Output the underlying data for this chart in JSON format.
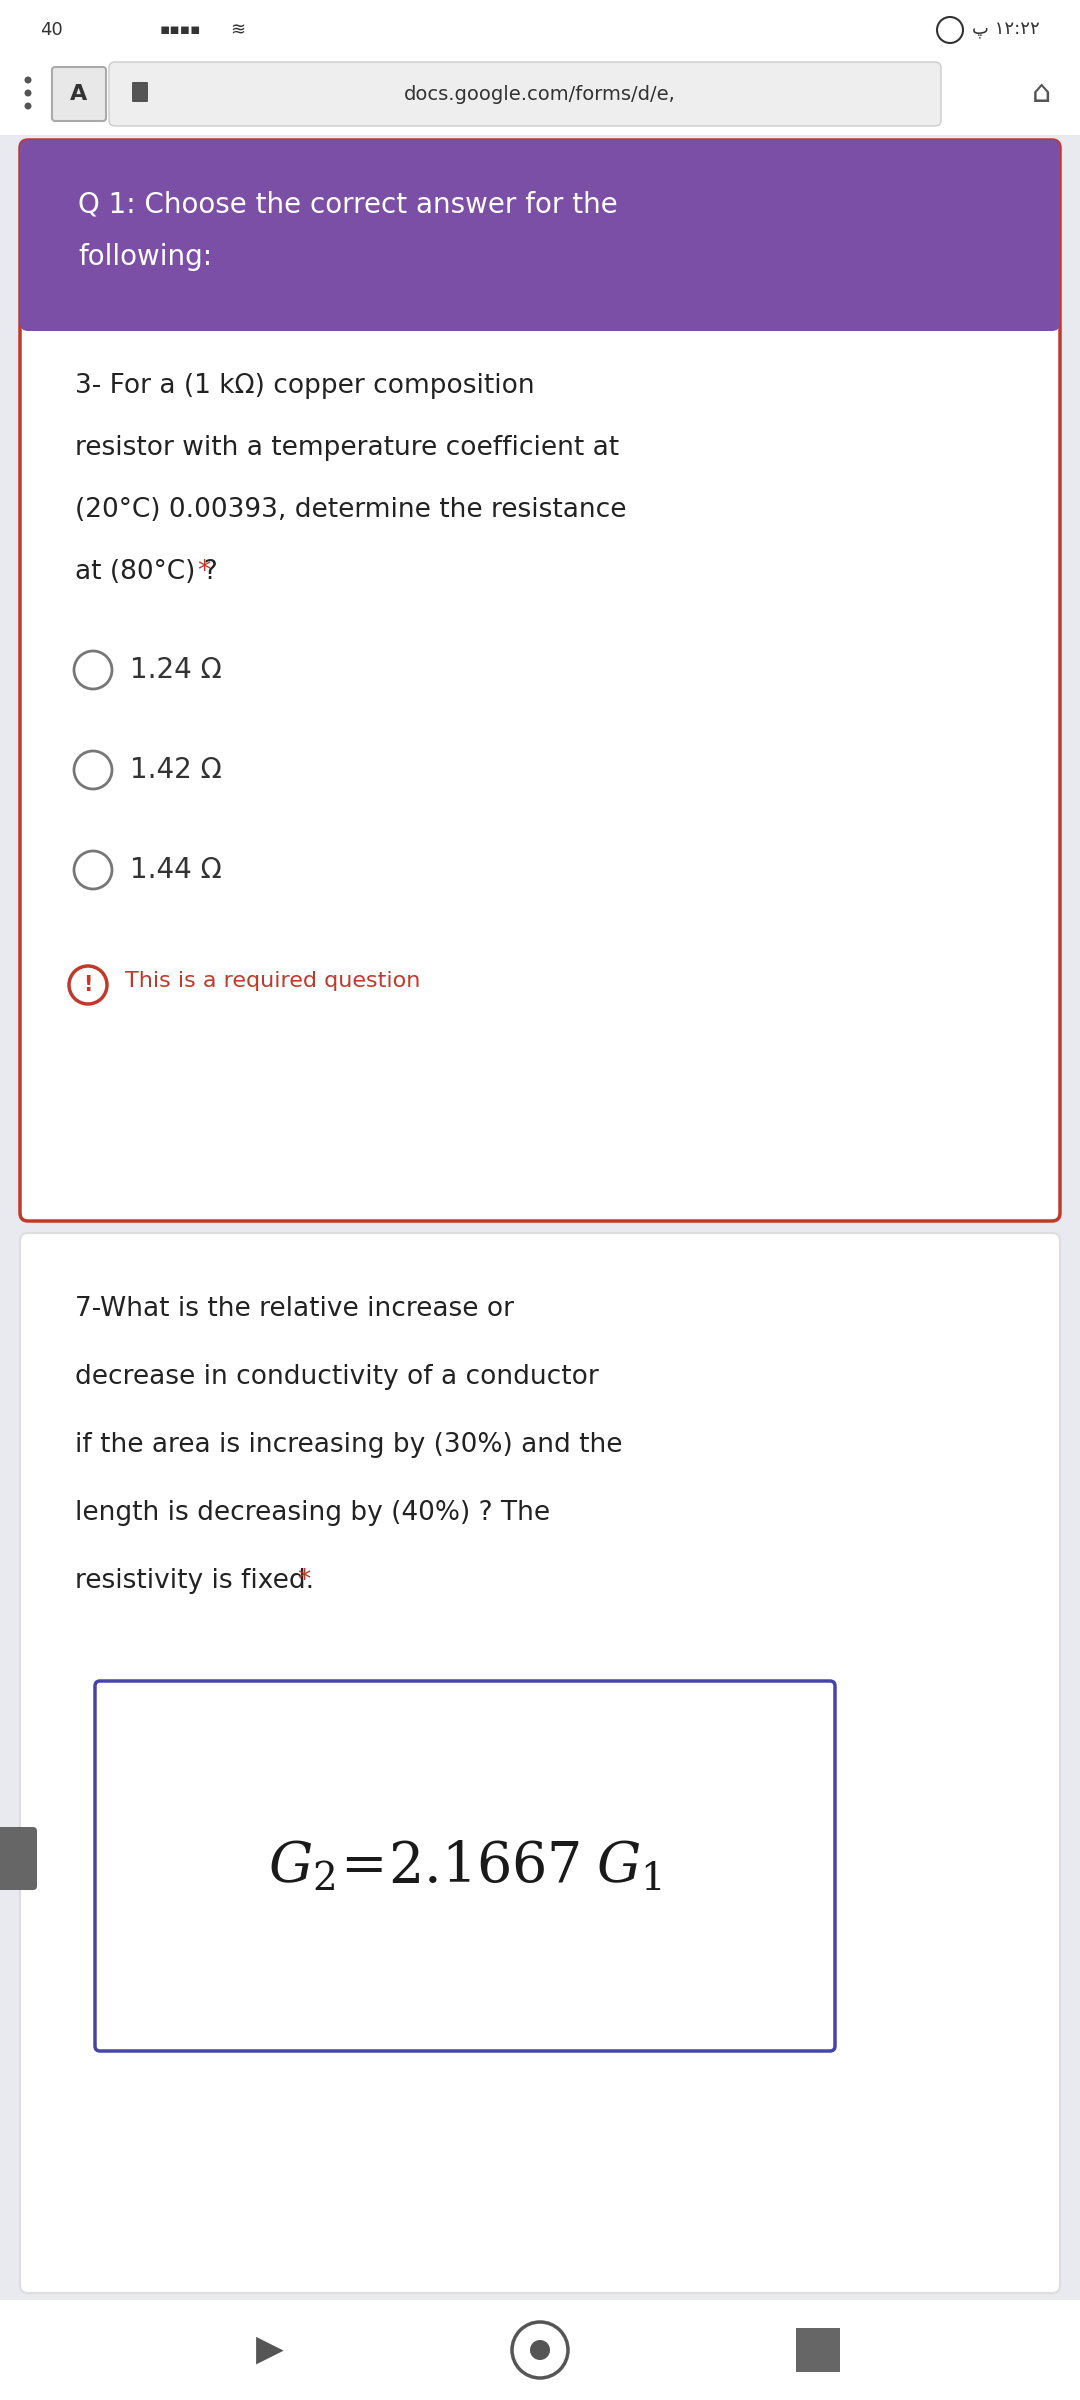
{
  "bg_color": "#e8eaf0",
  "url_text": "docs.google.com/forms/d/e,",
  "q1_header_bg": "#7B4FA6",
  "q1_header_text_color": "#ffffff",
  "q3_options": [
    "1.24 Ω",
    "1.42 Ω",
    "1.44 Ω"
  ],
  "required_text": "This is a required question",
  "required_color": "#c0392b",
  "card_bg": "#ffffff",
  "card_border_color": "#c0392b",
  "answer_box_border": "#4444aa",
  "card2_bg": "#ffffff",
  "page_bg": "#e8eaf0",
  "status_left": "40",
  "status_right": "پ ١٢:٢٢",
  "nav_bg": "#f5f5f5"
}
